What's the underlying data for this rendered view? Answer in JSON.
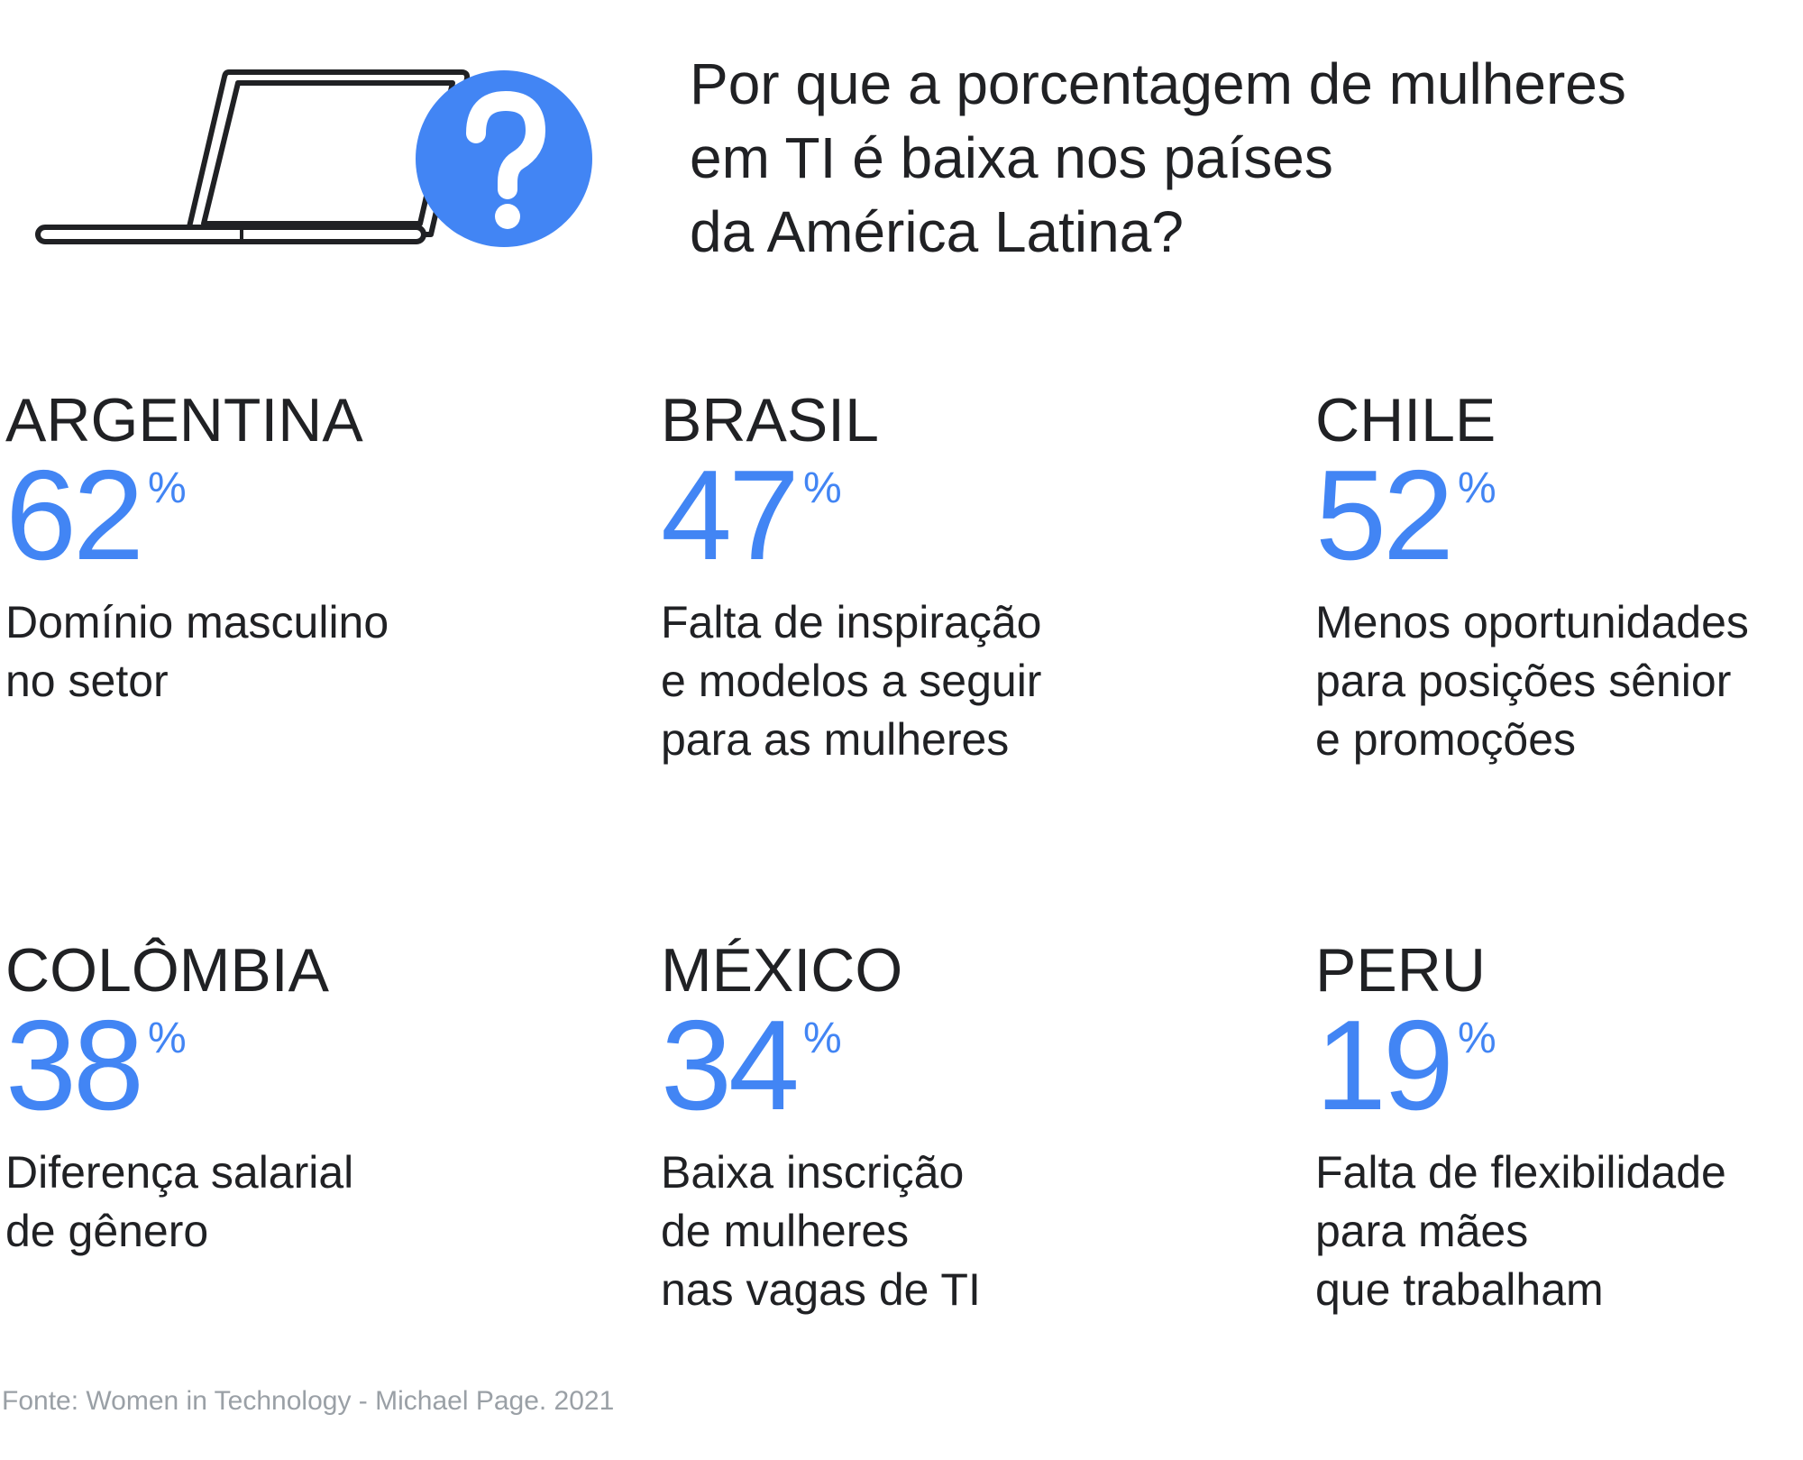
{
  "header": {
    "title_lines": [
      "Por que a porcentagem de mulheres",
      "em TI é baixa nos países",
      "da América Latina?"
    ],
    "icons": {
      "laptop": "laptop-icon",
      "question": "question-mark-icon"
    }
  },
  "colors": {
    "accent": "#4285f4",
    "text": "#202124",
    "source": "#9aa0a6"
  },
  "countries": [
    {
      "name": "ARGENTINA",
      "value": "62",
      "unit": "%",
      "lines": [
        "Domínio masculino",
        "no setor"
      ]
    },
    {
      "name": "BRASIL",
      "value": "47",
      "unit": "%",
      "lines": [
        "Falta de inspiração",
        "e modelos a seguir",
        "para as mulheres"
      ]
    },
    {
      "name": "CHILE",
      "value": "52",
      "unit": "%",
      "lines": [
        "Menos oportunidades",
        "para posições sênior",
        "e promoções"
      ]
    },
    {
      "name": "COLÔMBIA",
      "value": "38",
      "unit": "%",
      "lines": [
        "Diferença salarial",
        "de gênero"
      ]
    },
    {
      "name": "MÉXICO",
      "value": "34",
      "unit": "%",
      "lines": [
        "Baixa inscrição",
        "de mulheres",
        "nas vagas de TI"
      ]
    },
    {
      "name": "PERU",
      "value": "19",
      "unit": "%",
      "lines": [
        "Falta de flexibilidade",
        "para mães",
        "que trabalham"
      ]
    }
  ],
  "source": "Fonte: Women in Technology - Michael Page. 2021"
}
